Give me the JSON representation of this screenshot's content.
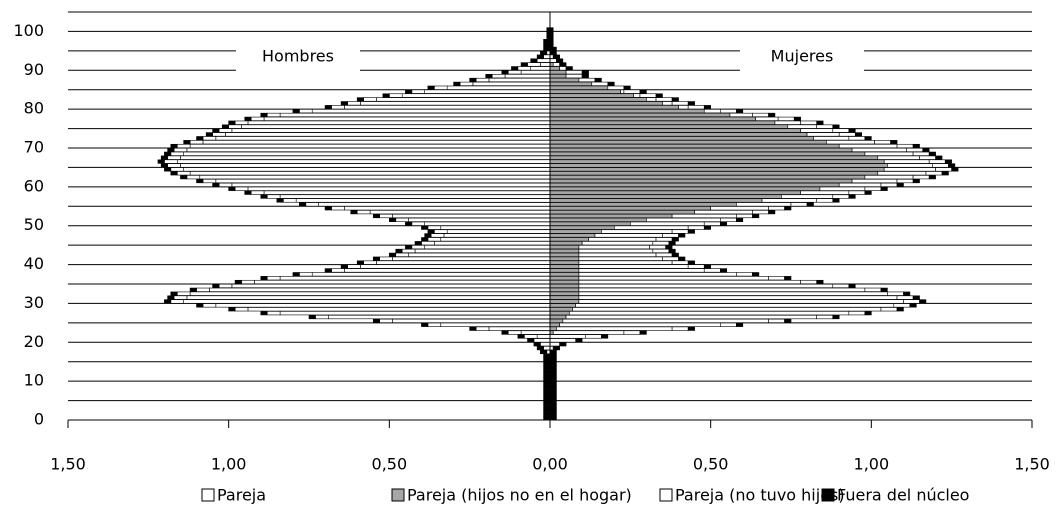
{
  "chart_data": {
    "type": "pyramid",
    "annotations": [
      "Hombres",
      "Mujeres"
    ],
    "y": [
      0,
      1,
      2,
      3,
      4,
      5,
      6,
      7,
      8,
      9,
      10,
      11,
      12,
      13,
      14,
      15,
      16,
      17,
      18,
      19,
      20,
      21,
      22,
      23,
      24,
      25,
      26,
      27,
      28,
      29,
      30,
      31,
      32,
      33,
      34,
      35,
      36,
      37,
      38,
      39,
      40,
      41,
      42,
      43,
      44,
      45,
      46,
      47,
      48,
      49,
      50,
      51,
      52,
      53,
      54,
      55,
      56,
      57,
      58,
      59,
      60,
      61,
      62,
      63,
      64,
      65,
      66,
      67,
      68,
      69,
      70,
      71,
      72,
      73,
      74,
      75,
      76,
      77,
      78,
      79,
      80,
      81,
      82,
      83,
      84,
      85,
      86,
      87,
      88,
      89,
      90,
      91,
      92,
      93,
      94,
      95,
      96,
      97,
      98,
      99,
      100
    ],
    "ylim": [
      0,
      105
    ],
    "yticks": [
      0,
      10,
      20,
      30,
      40,
      50,
      60,
      70,
      80,
      90,
      100
    ],
    "yminor": [
      5,
      15,
      25,
      35,
      45,
      55,
      65,
      75,
      85,
      95,
      105
    ],
    "xlim": [
      0,
      1.5
    ],
    "xticks_left": [
      {
        "value": 1.5,
        "label": "1,50"
      },
      {
        "value": 1,
        "label": "1,00"
      },
      {
        "value": 0.5,
        "label": "0,50"
      }
    ],
    "xticks_right": [
      {
        "value": 0,
        "label": "0,00"
      },
      {
        "value": 0.5,
        "label": "0,50"
      },
      {
        "value": 1,
        "label": "1,00"
      },
      {
        "value": 1.5,
        "label": "1,50"
      }
    ],
    "grid": true,
    "legend": "bottom",
    "series": [
      {
        "name": "Pareja",
        "color": "#ffffff",
        "men": [
          0,
          0,
          0,
          0,
          0,
          0,
          0,
          0,
          0,
          0,
          0,
          0,
          0,
          0,
          0,
          0,
          0,
          0.01,
          0.02,
          0.03,
          0.05,
          0.04,
          0.09,
          0.19,
          0.34,
          0.49,
          0.69,
          0.84,
          0.94,
          1.04,
          1.14,
          1.13,
          1.12,
          1.06,
          0.99,
          0.92,
          0.84,
          0.74,
          0.64,
          0.59,
          0.54,
          0.49,
          0.44,
          0.42,
          0.39,
          0.36,
          0.34,
          0.33,
          0.32,
          0.34,
          0.39,
          0.44,
          0.49,
          0.56,
          0.64,
          0.72,
          0.79,
          0.84,
          0.89,
          0.94,
          0.99,
          1.04,
          1.09,
          1.12,
          1.14,
          1.15,
          1.16,
          1.15,
          1.14,
          1.13,
          1.12,
          1.08,
          1.04,
          1.01,
          0.99,
          0.96,
          0.94,
          0.89,
          0.84,
          0.74,
          0.64,
          0.59,
          0.54,
          0.46,
          0.39,
          0.32,
          0.24,
          0.19,
          0.14,
          0.09,
          0.06,
          0.03,
          0,
          0.02,
          0.01,
          0,
          0,
          0,
          0,
          0,
          0
        ],
        "women": [
          0,
          0,
          0,
          0,
          0,
          0,
          0,
          0,
          0,
          0,
          0,
          0,
          0,
          0,
          0,
          0,
          0,
          0,
          0.01,
          0.03,
          0.08,
          0.11,
          0.22,
          0.36,
          0.5,
          0.64,
          0.78,
          0.87,
          0.96,
          0.99,
          1.01,
          0.99,
          0.96,
          0.89,
          0.79,
          0.69,
          0.59,
          0.49,
          0.39,
          0.34,
          0.29,
          0.26,
          0.24,
          0.23,
          0.22,
          0.22,
          0.21,
          0.21,
          0.22,
          0.23,
          0.23,
          0.23,
          0.2,
          0.18,
          0.18,
          0.17,
          0.17,
          0.16,
          0.15,
          0.14,
          0.13,
          0.14,
          0.15,
          0.15,
          0.16,
          0.14,
          0.14,
          0.13,
          0.15,
          0.17,
          0.18,
          0.15,
          0.11,
          0.1,
          0.1,
          0.09,
          0.08,
          0.07,
          0.07,
          0.05,
          0.03,
          0.03,
          0.03,
          0.02,
          0.01,
          0,
          0,
          0,
          0,
          0,
          0,
          0,
          0,
          0,
          0,
          0,
          0,
          0,
          0,
          0,
          0
        ]
      },
      {
        "name": "Pareja (hijos no en el hogar)",
        "color": "#a6a6a6",
        "men": [
          0,
          0,
          0,
          0,
          0,
          0,
          0,
          0,
          0,
          0,
          0,
          0,
          0,
          0,
          0,
          0,
          0,
          0,
          0,
          0,
          0,
          0,
          0,
          0,
          0,
          0,
          0,
          0,
          0,
          0,
          0,
          0,
          0,
          0,
          0,
          0,
          0,
          0,
          0,
          0,
          0,
          0,
          0,
          0,
          0,
          0,
          0,
          0,
          0,
          0,
          0,
          0,
          0,
          0,
          0,
          0,
          0,
          0,
          0,
          0,
          0,
          0,
          0,
          0,
          0,
          0,
          0,
          0,
          0,
          0,
          0,
          0,
          0,
          0,
          0,
          0,
          0,
          0,
          0,
          0,
          0,
          0,
          0,
          0,
          0,
          0,
          0,
          0,
          0,
          0,
          0,
          0,
          0,
          0,
          0,
          0,
          0,
          0,
          0,
          0,
          0
        ],
        "women": [
          0,
          0,
          0,
          0,
          0,
          0,
          0,
          0,
          0,
          0,
          0,
          0,
          0,
          0,
          0,
          0,
          0,
          0,
          0,
          0,
          0,
          0,
          0.01,
          0.02,
          0.03,
          0.04,
          0.05,
          0.06,
          0.07,
          0.08,
          0.09,
          0.09,
          0.09,
          0.09,
          0.09,
          0.09,
          0.09,
          0.09,
          0.09,
          0.09,
          0.09,
          0.09,
          0.09,
          0.09,
          0.09,
          0.1,
          0.12,
          0.14,
          0.16,
          0.2,
          0.25,
          0.3,
          0.38,
          0.45,
          0.5,
          0.58,
          0.66,
          0.72,
          0.78,
          0.84,
          0.9,
          0.94,
          0.98,
          1.02,
          1.04,
          1.05,
          1.04,
          1.02,
          0.98,
          0.94,
          0.9,
          0.86,
          0.82,
          0.8,
          0.78,
          0.74,
          0.7,
          0.64,
          0.56,
          0.48,
          0.4,
          0.35,
          0.3,
          0.26,
          0.22,
          0.18,
          0.13,
          0.09,
          0.05,
          0.05,
          0.03,
          0.01,
          0,
          0,
          0,
          0,
          0,
          0,
          0,
          0,
          0
        ]
      },
      {
        "name": "Pareja (no tuvo hijos)",
        "color": "#ffffff",
        "men": [
          0,
          0,
          0,
          0,
          0,
          0,
          0,
          0,
          0,
          0,
          0,
          0,
          0,
          0,
          0,
          0,
          0,
          0,
          0,
          0,
          0,
          0.04,
          0.04,
          0.04,
          0.04,
          0.04,
          0.04,
          0.04,
          0.04,
          0.04,
          0.04,
          0.04,
          0.04,
          0.04,
          0.04,
          0.04,
          0.04,
          0.04,
          0.04,
          0.04,
          0.04,
          0.04,
          0.04,
          0.04,
          0.04,
          0.04,
          0.04,
          0.04,
          0.04,
          0.04,
          0.04,
          0.04,
          0.04,
          0.04,
          0.04,
          0.04,
          0.04,
          0.04,
          0.04,
          0.04,
          0.04,
          0.04,
          0.04,
          0.04,
          0.04,
          0.04,
          0.04,
          0.04,
          0.04,
          0.04,
          0.04,
          0.04,
          0.04,
          0.04,
          0.04,
          0.04,
          0.04,
          0.04,
          0.04,
          0.04,
          0.04,
          0.04,
          0.04,
          0.04,
          0.04,
          0.04,
          0.04,
          0.04,
          0.04,
          0.04,
          0.04,
          0.04,
          0.04,
          0,
          0,
          0,
          0,
          0,
          0,
          0,
          0
        ],
        "women": [
          0,
          0,
          0,
          0,
          0,
          0,
          0,
          0,
          0,
          0,
          0,
          0,
          0,
          0,
          0,
          0,
          0,
          0,
          0,
          0,
          0,
          0.05,
          0.05,
          0.05,
          0.05,
          0.05,
          0.05,
          0.05,
          0.05,
          0.05,
          0.05,
          0.05,
          0.05,
          0.05,
          0.05,
          0.05,
          0.05,
          0.05,
          0.05,
          0.05,
          0.05,
          0.05,
          0.05,
          0.05,
          0.05,
          0.05,
          0.05,
          0.05,
          0.05,
          0.05,
          0.05,
          0.05,
          0.05,
          0.05,
          0.05,
          0.05,
          0.05,
          0.05,
          0.05,
          0.05,
          0.05,
          0.05,
          0.05,
          0.05,
          0.05,
          0.05,
          0.05,
          0.05,
          0.05,
          0.05,
          0.05,
          0.05,
          0.05,
          0.05,
          0.05,
          0.05,
          0.05,
          0.05,
          0.05,
          0.05,
          0.05,
          0.05,
          0.05,
          0.05,
          0.05,
          0.05,
          0.05,
          0.05,
          0.05,
          0.05,
          0.02,
          0.02,
          0.02,
          0.01,
          0,
          0,
          0,
          0,
          0,
          0,
          0,
          0
        ]
      },
      {
        "name": "Fuera del núcleo",
        "color": "#000000",
        "men": [
          0.02,
          0.02,
          0.02,
          0.02,
          0.02,
          0.02,
          0.02,
          0.02,
          0.02,
          0.02,
          0.02,
          0.02,
          0.02,
          0.02,
          0.02,
          0.02,
          0.02,
          0.02,
          0.02,
          0.02,
          0.02,
          0.02,
          0.02,
          0.02,
          0.02,
          0.02,
          0.02,
          0.02,
          0.02,
          0.02,
          0.02,
          0.02,
          0.02,
          0.02,
          0.02,
          0.02,
          0.02,
          0.02,
          0.02,
          0.02,
          0.02,
          0.02,
          0.02,
          0.02,
          0.02,
          0.02,
          0.02,
          0.02,
          0.02,
          0.02,
          0.02,
          0.02,
          0.02,
          0.02,
          0.02,
          0.02,
          0.02,
          0.02,
          0.02,
          0.02,
          0.02,
          0.02,
          0.02,
          0.02,
          0.02,
          0.02,
          0.02,
          0.02,
          0.02,
          0.02,
          0.02,
          0.02,
          0.02,
          0.02,
          0.02,
          0.02,
          0.02,
          0.02,
          0.02,
          0.02,
          0.02,
          0.02,
          0.02,
          0.02,
          0.02,
          0.02,
          0.02,
          0.02,
          0.02,
          0.02,
          0.02,
          0.02,
          0.02,
          0.02,
          0.02,
          0.02,
          0.02,
          0.02,
          0.01,
          0.01,
          0.01
        ],
        "women": [
          0.02,
          0.02,
          0.02,
          0.02,
          0.02,
          0.02,
          0.02,
          0.02,
          0.02,
          0.02,
          0.02,
          0.02,
          0.02,
          0.02,
          0.02,
          0.02,
          0.02,
          0.02,
          0.02,
          0.02,
          0.02,
          0.02,
          0.02,
          0.02,
          0.02,
          0.02,
          0.02,
          0.02,
          0.02,
          0.02,
          0.02,
          0.02,
          0.02,
          0.02,
          0.02,
          0.02,
          0.02,
          0.02,
          0.02,
          0.02,
          0.02,
          0.02,
          0.02,
          0.02,
          0.02,
          0.02,
          0.02,
          0.02,
          0.02,
          0.02,
          0.02,
          0.02,
          0.02,
          0.02,
          0.02,
          0.02,
          0.02,
          0.02,
          0.02,
          0.02,
          0.02,
          0.02,
          0.02,
          0.02,
          0.02,
          0.02,
          0.02,
          0.02,
          0.02,
          0.02,
          0.02,
          0.02,
          0.02,
          0.02,
          0.02,
          0.02,
          0.02,
          0.02,
          0.02,
          0.02,
          0.02,
          0.02,
          0.02,
          0.02,
          0.02,
          0.02,
          0.02,
          0.02,
          0.02,
          0.02,
          0.02,
          0.02,
          0.02,
          0.02,
          0.02,
          0.02,
          0.01,
          0.01,
          0.01,
          0.01,
          0.01
        ]
      }
    ]
  }
}
